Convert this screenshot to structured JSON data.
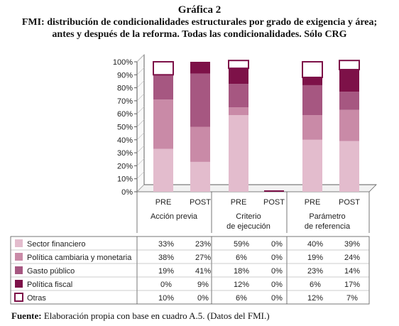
{
  "heading": "Gráfica 2",
  "subtitle_line1": "FMI: distribución de condicionalidades estructurales por grado de exigencia y área;",
  "subtitle_line2": "antes y después de la reforma. Todas las condicionalidades. Sólo CRG",
  "footer": {
    "label": "Fuente:",
    "text": "Elaboración propia con base en cuadro A.5. (Datos del FMI.)"
  },
  "colors": {
    "sector_financiero": "#e3bccd",
    "politica_cambiaria": "#c98aa7",
    "gasto_publico": "#a65781",
    "politica_fiscal": "#7d1148",
    "otras": "#ffffff",
    "axis": "#555555"
  },
  "chart_data": {
    "type": "bar",
    "stacked": true,
    "ylim": [
      0,
      100
    ],
    "y_ticks": [
      "0%",
      "10%",
      "20%",
      "30%",
      "40%",
      "50%",
      "60%",
      "70%",
      "80%",
      "90%",
      "100%"
    ],
    "categories": [
      "PRE",
      "POST",
      "PRE",
      "POST",
      "PRE",
      "POST"
    ],
    "groups": [
      {
        "label_lines": [
          "Acción previa"
        ]
      },
      {
        "label_lines": [
          "Criterio",
          "de ejecución"
        ]
      },
      {
        "label_lines": [
          "Parámetro",
          "de referencia"
        ]
      }
    ],
    "series": [
      {
        "name": "Sector financiero",
        "key": "sector_financiero",
        "values": [
          33,
          23,
          59,
          0,
          40,
          39
        ],
        "labels": [
          "33%",
          "23%",
          "59%",
          "0%",
          "40%",
          "39%"
        ]
      },
      {
        "name": "Política cambiaria y monetaria",
        "key": "politica_cambiaria",
        "values": [
          38,
          27,
          6,
          0,
          19,
          24
        ],
        "labels": [
          "38%",
          "27%",
          "6%",
          "0%",
          "19%",
          "24%"
        ]
      },
      {
        "name": "Gasto público",
        "key": "gasto_publico",
        "values": [
          19,
          41,
          18,
          0,
          23,
          14
        ],
        "labels": [
          "19%",
          "41%",
          "18%",
          "0%",
          "23%",
          "14%"
        ]
      },
      {
        "name": "Política fiscal",
        "key": "politica_fiscal",
        "values": [
          0,
          9,
          12,
          0,
          6,
          17
        ],
        "labels": [
          "0%",
          "9%",
          "12%",
          "0%",
          "6%",
          "17%"
        ]
      },
      {
        "name": "Otras",
        "key": "otras",
        "values": [
          10,
          0,
          6,
          0,
          12,
          7
        ],
        "labels": [
          "10%",
          "0%",
          "6%",
          "0%",
          "12%",
          "7%"
        ]
      }
    ]
  }
}
